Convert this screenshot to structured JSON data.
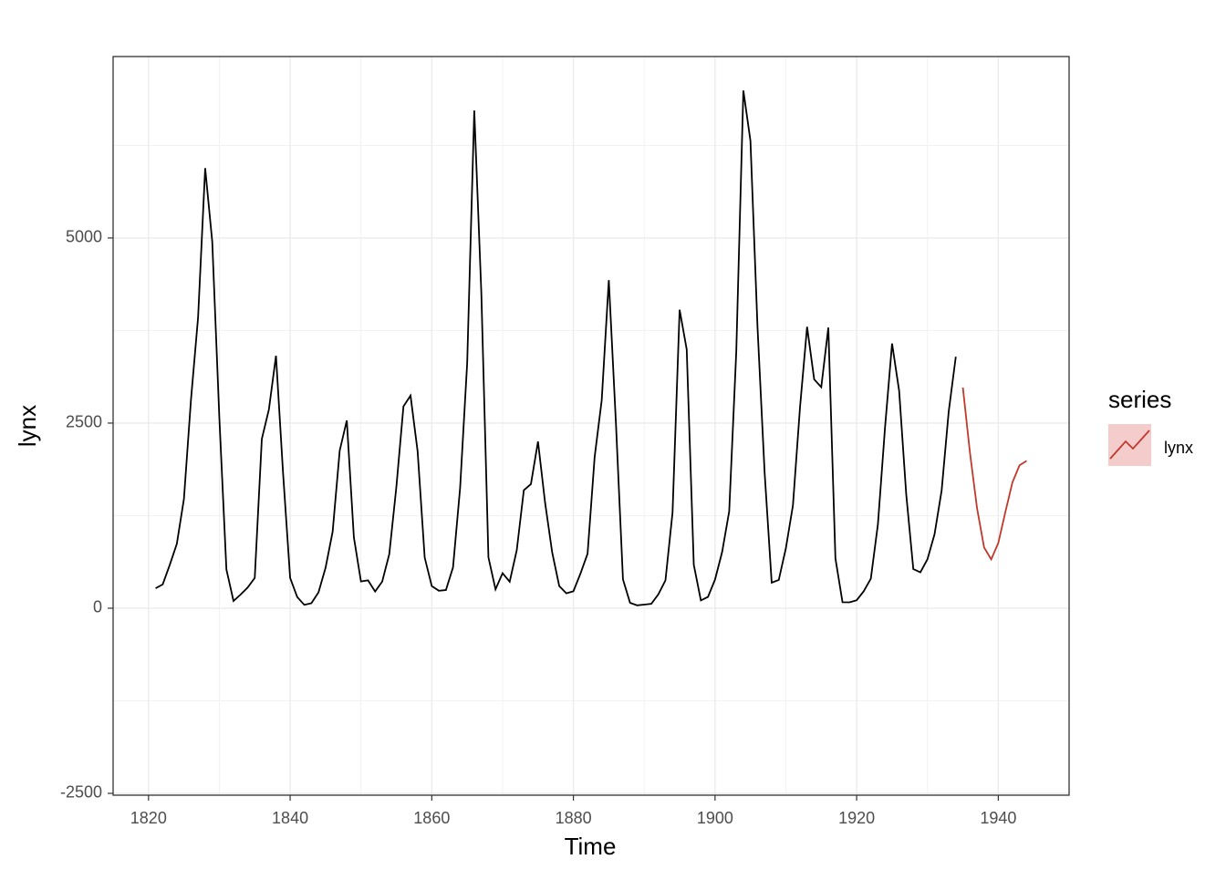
{
  "chart_data": {
    "type": "line",
    "x_label": "Time",
    "y_label": "lynx",
    "xlim": [
      1815,
      1950
    ],
    "ylim": [
      -2525,
      7450
    ],
    "xticks": [
      1820,
      1840,
      1860,
      1880,
      1900,
      1920,
      1940
    ],
    "yticks": [
      -2500,
      0,
      2500,
      5000
    ],
    "x_minor_grid": [
      1830,
      1850,
      1870,
      1890,
      1910,
      1930
    ],
    "y_minor_grid": [
      -1250,
      1250,
      3750,
      6250
    ],
    "grid": true,
    "legend_title": "series",
    "series": [
      {
        "color": "#000000",
        "x": [
          1821,
          1822,
          1823,
          1824,
          1825,
          1826,
          1827,
          1828,
          1829,
          1830,
          1831,
          1832,
          1833,
          1834,
          1835,
          1836,
          1837,
          1838,
          1839,
          1840,
          1841,
          1842,
          1843,
          1844,
          1845,
          1846,
          1847,
          1848,
          1849,
          1850,
          1851,
          1852,
          1853,
          1854,
          1855,
          1856,
          1857,
          1858,
          1859,
          1860,
          1861,
          1862,
          1863,
          1864,
          1865,
          1866,
          1867,
          1868,
          1869,
          1870,
          1871,
          1872,
          1873,
          1874,
          1875,
          1876,
          1877,
          1878,
          1879,
          1880,
          1881,
          1882,
          1883,
          1884,
          1885,
          1886,
          1887,
          1888,
          1889,
          1890,
          1891,
          1892,
          1893,
          1894,
          1895,
          1896,
          1897,
          1898,
          1899,
          1900,
          1901,
          1902,
          1903,
          1904,
          1905,
          1906,
          1907,
          1908,
          1909,
          1910,
          1911,
          1912,
          1913,
          1914,
          1915,
          1916,
          1917,
          1918,
          1919,
          1920,
          1921,
          1922,
          1923,
          1924,
          1925,
          1926,
          1927,
          1928,
          1929,
          1930,
          1931,
          1932,
          1933,
          1934
        ],
        "values": [
          269,
          321,
          585,
          871,
          1475,
          2821,
          3928,
          5943,
          4950,
          2577,
          523,
          98,
          184,
          279,
          409,
          2285,
          2685,
          3409,
          1824,
          409,
          151,
          45,
          68,
          213,
          546,
          1033,
          2129,
          2536,
          957,
          361,
          377,
          225,
          360,
          731,
          1638,
          2725,
          2871,
          2119,
          684,
          299,
          236,
          245,
          552,
          1623,
          3311,
          6721,
          4254,
          687,
          255,
          473,
          358,
          784,
          1594,
          1676,
          2251,
          1426,
          756,
          299,
          201,
          229,
          469,
          736,
          2042,
          2811,
          4431,
          2511,
          389,
          73,
          39,
          49,
          59,
          188,
          377,
          1292,
          4031,
          3495,
          587,
          105,
          153,
          387,
          758,
          1307,
          3465,
          6991,
          6313,
          3794,
          1836,
          345,
          382,
          808,
          1388,
          2713,
          3800,
          3091,
          2985,
          3790,
          674,
          81,
          80,
          108,
          229,
          399,
          1132,
          2432,
          3574,
          2935,
          1537,
          529,
          485,
          662,
          1000,
          1590,
          2657,
          3396
        ]
      },
      {
        "name": "lynx",
        "color": "#c0392b",
        "x": [
          1935,
          1936,
          1937,
          1938,
          1939,
          1940,
          1941,
          1942,
          1943,
          1944
        ],
        "values": [
          2980,
          2100,
          1350,
          820,
          660,
          880,
          1300,
          1700,
          1930,
          1990
        ]
      }
    ]
  }
}
